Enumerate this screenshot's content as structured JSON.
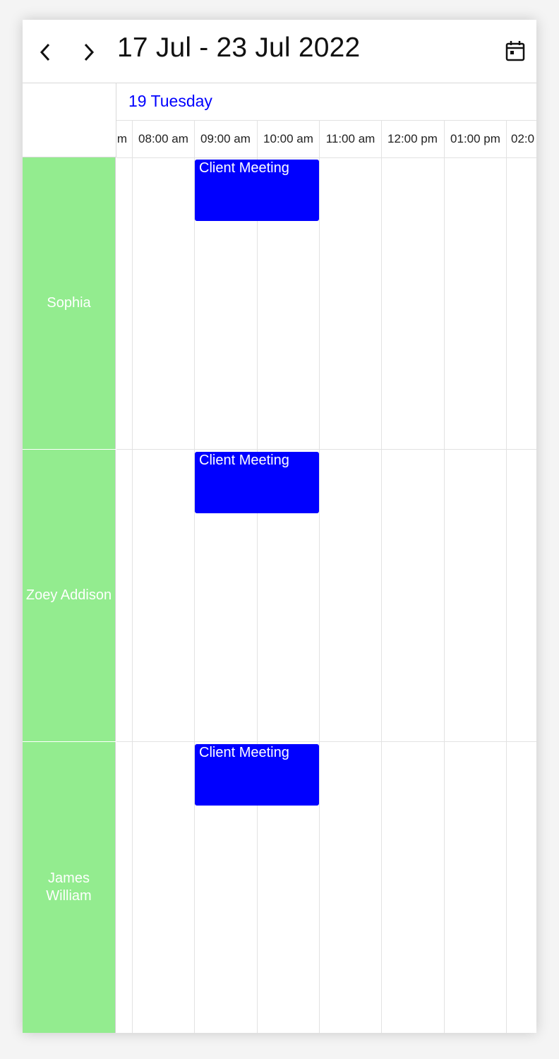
{
  "header": {
    "title": "17 Jul - 23 Jul 2022",
    "prev_icon": "chevron-left-icon",
    "next_icon": "chevron-right-icon",
    "calendar_icon": "calendar-icon"
  },
  "date_header": {
    "label": "19 Tuesday",
    "color": "#0000ff"
  },
  "time_slots": [
    "m",
    "08:00 am",
    "09:00 am",
    "10:00 am",
    "11:00 am",
    "12:00 pm",
    "01:00 pm",
    "02:0"
  ],
  "resources": [
    {
      "name": "Sophia"
    },
    {
      "name": "Zoey Addison"
    },
    {
      "name": "James William"
    }
  ],
  "appointments": [
    {
      "subject": "Client Meeting",
      "resource": "Sophia"
    },
    {
      "subject": "Client Meeting",
      "resource": "Zoey Addison"
    },
    {
      "subject": "Client Meeting",
      "resource": "James William"
    }
  ],
  "colors": {
    "resource_bg": "#93ec8f",
    "appointment_bg": "#0000ff",
    "accent": "#0000ff"
  }
}
